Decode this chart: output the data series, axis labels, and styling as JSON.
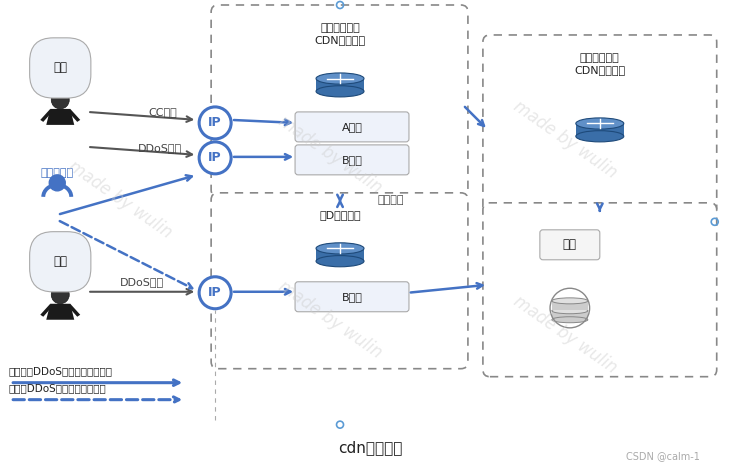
{
  "title": "cdn安全防护",
  "watermark": "made by wulin",
  "credit": "CSDN @calm-1",
  "bg_color": "#ffffff",
  "blue": "#4472c4",
  "blue_dark": "#2c5f8a",
  "blue_light": "#5b9bd5",
  "gray": "#888888",
  "black": "#1a1a1a",
  "box_top_label1": "带安全能力的",
  "box_top_label2": "CDN边缘节点",
  "box_right_label1": "带安全能力的",
  "box_right_label2": "CDN中间节点",
  "box_bottom_label": "抗D清洗中心",
  "yuanzhan_label": "源站",
  "hacker_label": "黑客",
  "visitor_label": "正常访问者",
  "cc_label": "CC攻击",
  "ddos_label": "DDoS攻击",
  "switch_label": "智能切换",
  "A_site": "A网站",
  "B_site": "B网站",
  "legend1": "网站未被DDoS攻击时的访问路径",
  "legend2": "网站被DDoS攻击时的访问路径"
}
